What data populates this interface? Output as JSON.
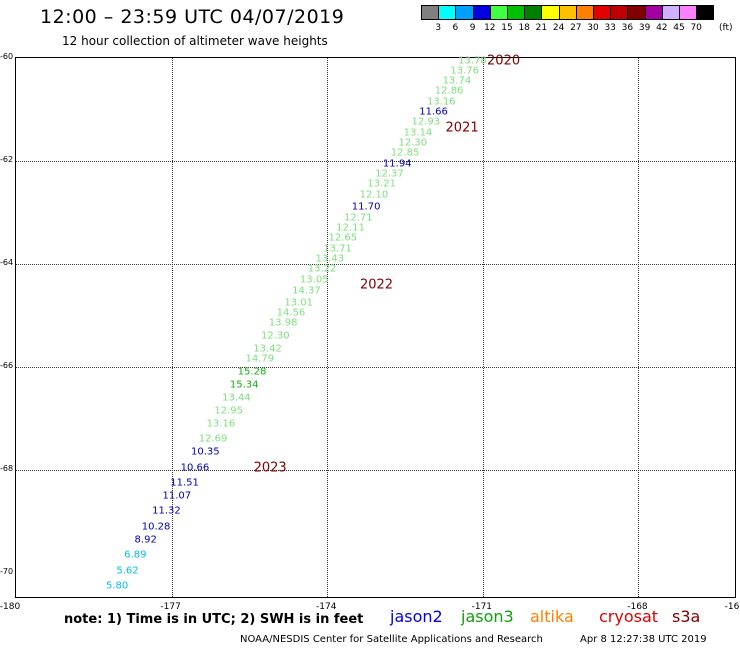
{
  "title": "12:00 – 23:59 UTC 04/07/2019",
  "subtitle": "12 hour collection of altimeter wave heights",
  "legend": {
    "unit": "(ft)",
    "boxes": [
      {
        "color": "#808080",
        "label": "3"
      },
      {
        "color": "#00ffff",
        "label": "6"
      },
      {
        "color": "#00a0ff",
        "label": "9"
      },
      {
        "color": "#0000e0",
        "label": "12"
      },
      {
        "color": "#40ff40",
        "label": "15"
      },
      {
        "color": "#00c000",
        "label": "18"
      },
      {
        "color": "#008000",
        "label": "21"
      },
      {
        "color": "#ffff00",
        "label": "24"
      },
      {
        "color": "#ffc000",
        "label": "27"
      },
      {
        "color": "#ff8000",
        "label": "30"
      },
      {
        "color": "#e00000",
        "label": "33"
      },
      {
        "color": "#c00000",
        "label": "36"
      },
      {
        "color": "#800000",
        "label": "39"
      },
      {
        "color": "#a000a0",
        "label": "42"
      },
      {
        "color": "#d0b0ff",
        "label": "45"
      },
      {
        "color": "#ff80ff",
        "label": "70"
      },
      {
        "color": "#000000",
        "label": ""
      }
    ]
  },
  "axes": {
    "lat_labels": [
      "-60",
      "-62",
      "-64",
      "-66",
      "-68",
      "-70"
    ],
    "lon_labels": [
      "-180",
      "-177",
      "-174",
      "-171",
      "-168",
      "-16"
    ]
  },
  "colors": {
    "light_green": "#7ee07e",
    "green": "#10b010",
    "navy": "#0000b0",
    "cyan": "#00c0e0",
    "year": "#800000"
  },
  "readings": [
    {
      "v": "13.78",
      "c": "light_green",
      "lon": -171.2,
      "lat": -60.05
    },
    {
      "v": "13.76",
      "c": "light_green",
      "lon": -171.35,
      "lat": -60.25
    },
    {
      "v": "13.74",
      "c": "light_green",
      "lon": -171.5,
      "lat": -60.45
    },
    {
      "v": "12.86",
      "c": "light_green",
      "lon": -171.65,
      "lat": -60.65
    },
    {
      "v": "13.16",
      "c": "light_green",
      "lon": -171.8,
      "lat": -60.85
    },
    {
      "v": "11.66",
      "c": "navy",
      "lon": -171.95,
      "lat": -61.05
    },
    {
      "v": "12.93",
      "c": "light_green",
      "lon": -172.1,
      "lat": -61.25
    },
    {
      "v": "13.14",
      "c": "light_green",
      "lon": -172.25,
      "lat": -61.45
    },
    {
      "v": "12.30",
      "c": "light_green",
      "lon": -172.35,
      "lat": -61.65
    },
    {
      "v": "12.85",
      "c": "light_green",
      "lon": -172.5,
      "lat": -61.85
    },
    {
      "v": "11.94",
      "c": "navy",
      "lon": -172.65,
      "lat": -62.05
    },
    {
      "v": "12.37",
      "c": "light_green",
      "lon": -172.8,
      "lat": -62.25
    },
    {
      "v": "13.21",
      "c": "light_green",
      "lon": -172.95,
      "lat": -62.45
    },
    {
      "v": "12.10",
      "c": "light_green",
      "lon": -173.1,
      "lat": -62.65
    },
    {
      "v": "11.70",
      "c": "navy",
      "lon": -173.25,
      "lat": -62.9
    },
    {
      "v": "12.71",
      "c": "light_green",
      "lon": -173.4,
      "lat": -63.1
    },
    {
      "v": "12.11",
      "c": "light_green",
      "lon": -173.55,
      "lat": -63.3
    },
    {
      "v": "12.65",
      "c": "light_green",
      "lon": -173.7,
      "lat": -63.5
    },
    {
      "v": "13.71",
      "c": "light_green",
      "lon": -173.8,
      "lat": -63.7
    },
    {
      "v": "13.43",
      "c": "light_green",
      "lon": -173.95,
      "lat": -63.9
    },
    {
      "v": "13.22",
      "c": "light_green",
      "lon": -174.1,
      "lat": -64.1
    },
    {
      "v": "13.05",
      "c": "light_green",
      "lon": -174.25,
      "lat": -64.3
    },
    {
      "v": "14.37",
      "c": "light_green",
      "lon": -174.4,
      "lat": -64.52
    },
    {
      "v": "13.01",
      "c": "light_green",
      "lon": -174.55,
      "lat": -64.75
    },
    {
      "v": "14.56",
      "c": "light_green",
      "lon": -174.7,
      "lat": -64.95
    },
    {
      "v": "13.98",
      "c": "light_green",
      "lon": -174.85,
      "lat": -65.15
    },
    {
      "v": "12.30",
      "c": "light_green",
      "lon": -175.0,
      "lat": -65.4
    },
    {
      "v": "13.42",
      "c": "light_green",
      "lon": -175.15,
      "lat": -65.65
    },
    {
      "v": "14.79",
      "c": "light_green",
      "lon": -175.3,
      "lat": -65.85
    },
    {
      "v": "15.28",
      "c": "green",
      "lon": -175.45,
      "lat": -66.1
    },
    {
      "v": "15.34",
      "c": "green",
      "lon": -175.6,
      "lat": -66.35
    },
    {
      "v": "13.44",
      "c": "light_green",
      "lon": -175.75,
      "lat": -66.6
    },
    {
      "v": "12.95",
      "c": "light_green",
      "lon": -175.9,
      "lat": -66.85
    },
    {
      "v": "13.16",
      "c": "light_green",
      "lon": -176.05,
      "lat": -67.1
    },
    {
      "v": "12.69",
      "c": "light_green",
      "lon": -176.2,
      "lat": -67.4
    },
    {
      "v": "10.35",
      "c": "navy",
      "lon": -176.35,
      "lat": -67.65
    },
    {
      "v": "10.66",
      "c": "navy",
      "lon": -176.55,
      "lat": -67.95
    },
    {
      "v": "11.51",
      "c": "navy",
      "lon": -176.75,
      "lat": -68.25
    },
    {
      "v": "11.07",
      "c": "navy",
      "lon": -176.9,
      "lat": -68.5
    },
    {
      "v": "11.32",
      "c": "navy",
      "lon": -177.1,
      "lat": -68.8
    },
    {
      "v": "10.28",
      "c": "navy",
      "lon": -177.3,
      "lat": -69.1
    },
    {
      "v": "8.92",
      "c": "navy",
      "lon": -177.5,
      "lat": -69.35
    },
    {
      "v": "6.89",
      "c": "cyan",
      "lon": -177.7,
      "lat": -69.65
    },
    {
      "v": "5.62",
      "c": "cyan",
      "lon": -177.85,
      "lat": -69.95
    },
    {
      "v": "5.80",
      "c": "cyan",
      "lon": -178.05,
      "lat": -70.25
    }
  ],
  "year_labels": [
    {
      "text": "2020",
      "lon": -170.6,
      "lat": -60.05
    },
    {
      "text": "2021",
      "lon": -171.4,
      "lat": -61.35
    },
    {
      "text": "2022",
      "lon": -173.05,
      "lat": -64.4
    },
    {
      "text": "2023",
      "lon": -175.1,
      "lat": -67.95
    }
  ],
  "note": "note: 1) Time is in UTC; 2) SWH is in feet",
  "satellites": [
    {
      "name": "jason2",
      "color": "#0000e0"
    },
    {
      "name": "jason3",
      "color": "#10a010"
    },
    {
      "name": "altika",
      "color": "#ff8000"
    },
    {
      "name": "cryosat",
      "color": "#e00000"
    },
    {
      "name": "s3a",
      "color": "#800000"
    }
  ],
  "footer": "NOAA/NESDIS Center for Satellite Applications and Research",
  "footer_date": "Apr  8 12:27:38 UTC 2019"
}
